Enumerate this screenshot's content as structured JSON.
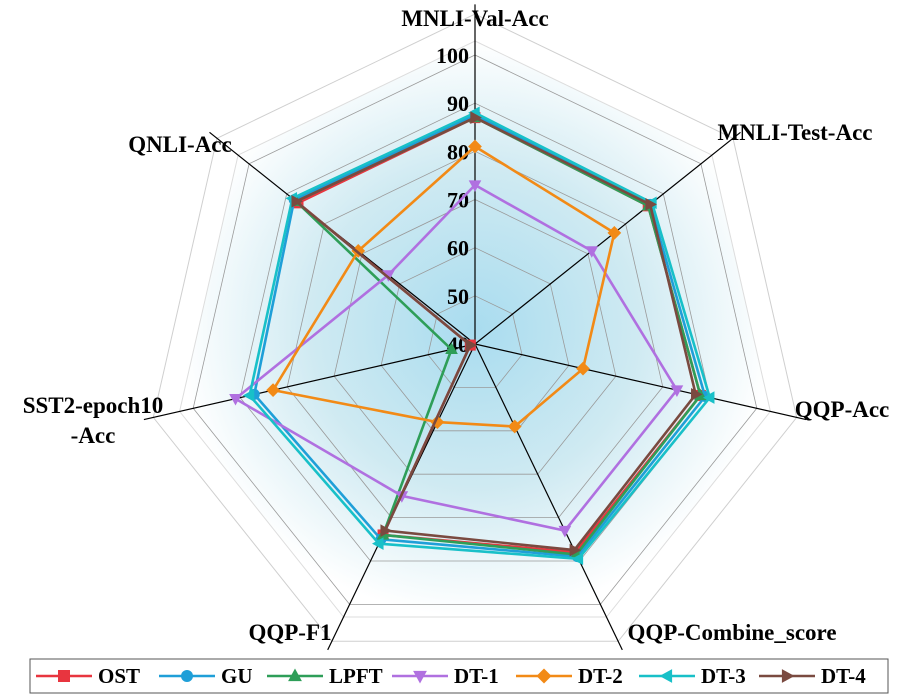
{
  "chart_data": {
    "type": "radar",
    "axes": [
      "MNLI-Val-Acc",
      "MNLI-Test-Acc",
      "QQP-Acc",
      "QQP-Combine_score",
      "QQP-F1",
      "SST2-epoch10-Acc",
      "QNLI-Acc"
    ],
    "axis_label_lines": [
      [
        "MNLI-Val-Acc"
      ],
      [
        "MNLI-Test-Acc"
      ],
      [
        "QQP-Acc"
      ],
      [
        "QQP-Combine_score"
      ],
      [
        "QQP-F1"
      ],
      [
        "SST2-epoch10",
        "-Acc"
      ],
      [
        "QNLI-Acc"
      ]
    ],
    "rlim": [
      40,
      100
    ],
    "ticks": [
      40,
      50,
      60,
      70,
      80,
      90,
      100
    ],
    "legend_position": "bottom",
    "series": [
      {
        "name": "OST",
        "color": "#e8353f",
        "marker": "square",
        "values": [
          87.0,
          86.0,
          88.0,
          88.0,
          84.0,
          41.0,
          87.0
        ]
      },
      {
        "name": "GU",
        "color": "#1f9fd8",
        "marker": "circle",
        "values": [
          87.5,
          86.5,
          89.0,
          89.0,
          85.0,
          87.0,
          88.0
        ]
      },
      {
        "name": "LPFT",
        "color": "#2e9e58",
        "marker": "triangle-up",
        "values": [
          87.0,
          86.0,
          88.0,
          88.5,
          84.0,
          45.0,
          87.5
        ]
      },
      {
        "name": "DT-1",
        "color": "#b070e0",
        "marker": "triangle-down",
        "values": [
          73.0,
          71.0,
          83.0,
          83.0,
          75.0,
          91.0,
          63.0
        ]
      },
      {
        "name": "DT-2",
        "color": "#f28a16",
        "marker": "diamond",
        "values": [
          81.0,
          77.0,
          63.0,
          59.0,
          58.0,
          83.0,
          71.0
        ]
      },
      {
        "name": "DT-3",
        "color": "#18c0c8",
        "marker": "triangle-left",
        "values": [
          88.0,
          87.0,
          90.0,
          89.5,
          86.0,
          88.0,
          88.5
        ]
      },
      {
        "name": "DT-4",
        "color": "#7a4a40",
        "marker": "triangle-right",
        "values": [
          87.0,
          86.5,
          87.0,
          87.5,
          83.0,
          41.0,
          87.5
        ]
      }
    ]
  }
}
